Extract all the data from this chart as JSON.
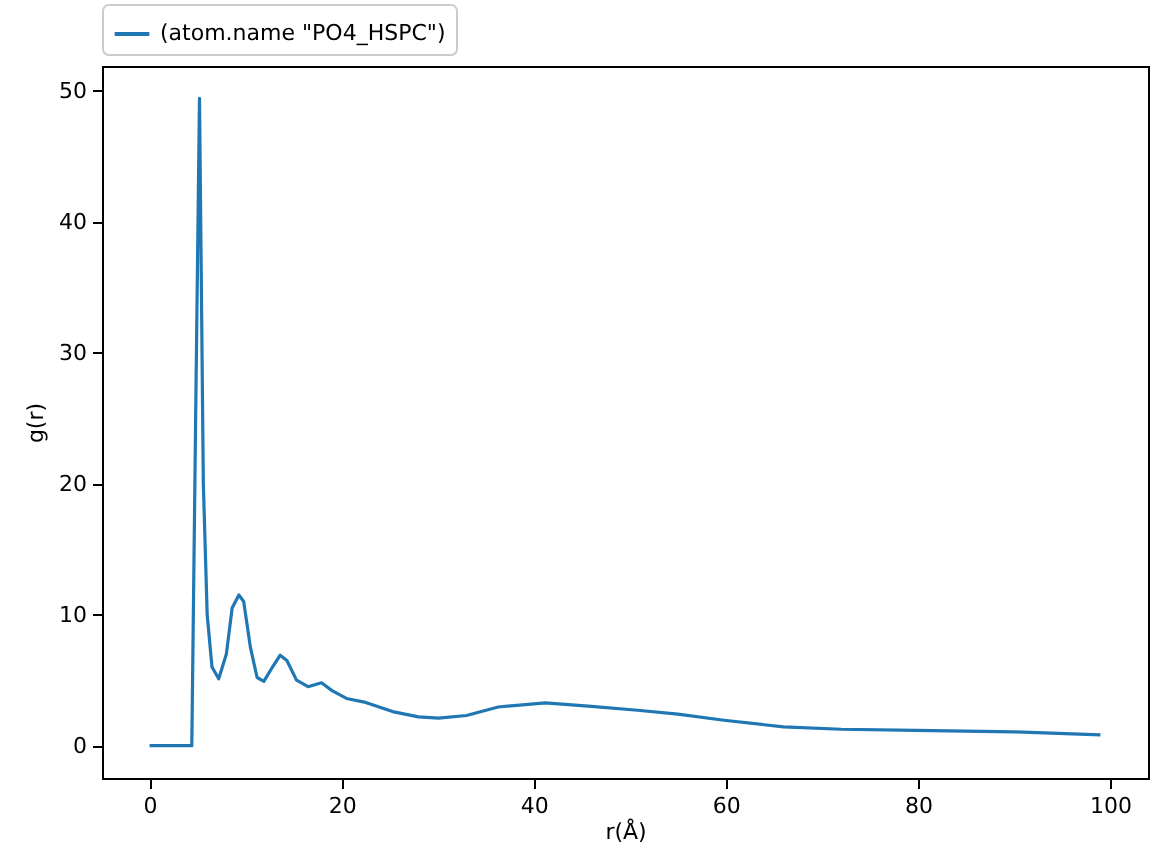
{
  "chart_data": {
    "type": "line",
    "xlabel": "r(Å)",
    "ylabel": "g(r)",
    "x": [
      0,
      4.4,
      4.8,
      5.2,
      5.6,
      6.0,
      6.5,
      7.2,
      8.0,
      8.6,
      9.3,
      9.8,
      10.5,
      11.2,
      11.9,
      12.8,
      13.6,
      14.3,
      15.3,
      16.5,
      17.9,
      19,
      20.5,
      22.5,
      25.3,
      28,
      30.1,
      33,
      36.3,
      41.2,
      46,
      50.8,
      55,
      59.8,
      66,
      72,
      79.8,
      90,
      99
    ],
    "series": [
      {
        "name": "(atom.name \"PO4_HSPC\")",
        "color": "#1f77b4",
        "values": [
          0,
          0,
          25,
          49.4,
          20,
          10,
          6,
          5.1,
          7,
          10.5,
          11.5,
          11,
          7.5,
          5.2,
          4.9,
          6,
          6.9,
          6.5,
          5,
          4.5,
          4.8,
          4.2,
          3.6,
          3.3,
          2.6,
          2.2,
          2.1,
          2.3,
          2.95,
          3.26,
          3.0,
          2.7,
          2.4,
          1.94,
          1.43,
          1.25,
          1.17,
          1.05,
          0.82
        ]
      }
    ],
    "xlim": [
      -4.95,
      103.95
    ],
    "ylim": [
      -2.47,
      51.87
    ],
    "xticks": [
      0,
      20,
      40,
      60,
      80,
      100
    ],
    "yticks": [
      0,
      10,
      20,
      30,
      40,
      50
    ],
    "legend": "top left"
  }
}
